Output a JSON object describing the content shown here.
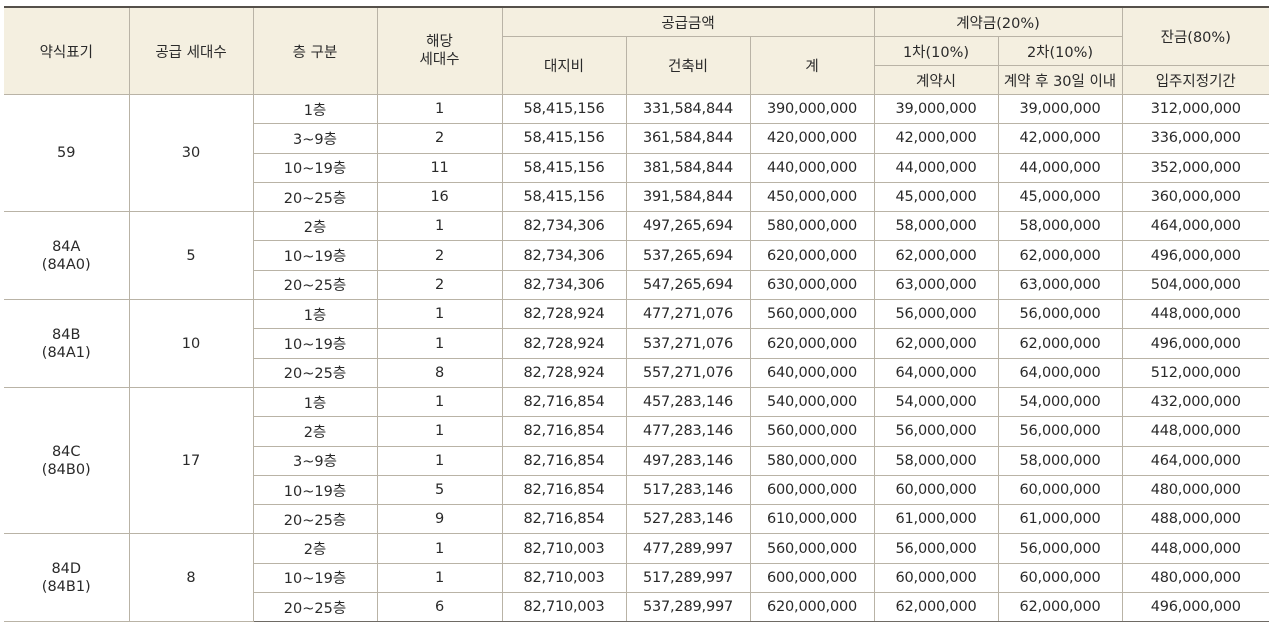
{
  "headers": {
    "type_label": "약식표기",
    "supply_units": "공급 세대수",
    "floor": "층 구분",
    "applicable_units_line1": "해당",
    "applicable_units_line2": "세대수",
    "supply_price": "공급금액",
    "land": "대지비",
    "building": "건축비",
    "total": "계",
    "deposit": "계약금(20%)",
    "first": "1차(10%)",
    "second": "2차(10%)",
    "first_when": "계약시",
    "second_when": "계약 후 30일 이내",
    "balance": "잔금(80%)",
    "balance_when": "입주지정기간"
  },
  "groups": [
    {
      "type": "59",
      "type_sub": "",
      "supply_units": "30",
      "rows": [
        {
          "floor": "1층",
          "units": "1",
          "land": "58,415,156",
          "building": "331,584,844",
          "total": "390,000,000",
          "first": "39,000,000",
          "second": "39,000,000",
          "balance": "312,000,000"
        },
        {
          "floor": "3~9층",
          "units": "2",
          "land": "58,415,156",
          "building": "361,584,844",
          "total": "420,000,000",
          "first": "42,000,000",
          "second": "42,000,000",
          "balance": "336,000,000"
        },
        {
          "floor": "10~19층",
          "units": "11",
          "land": "58,415,156",
          "building": "381,584,844",
          "total": "440,000,000",
          "first": "44,000,000",
          "second": "44,000,000",
          "balance": "352,000,000"
        },
        {
          "floor": "20~25층",
          "units": "16",
          "land": "58,415,156",
          "building": "391,584,844",
          "total": "450,000,000",
          "first": "45,000,000",
          "second": "45,000,000",
          "balance": "360,000,000"
        }
      ]
    },
    {
      "type": "84A",
      "type_sub": "(84A0)",
      "supply_units": "5",
      "rows": [
        {
          "floor": "2층",
          "units": "1",
          "land": "82,734,306",
          "building": "497,265,694",
          "total": "580,000,000",
          "first": "58,000,000",
          "second": "58,000,000",
          "balance": "464,000,000"
        },
        {
          "floor": "10~19층",
          "units": "2",
          "land": "82,734,306",
          "building": "537,265,694",
          "total": "620,000,000",
          "first": "62,000,000",
          "second": "62,000,000",
          "balance": "496,000,000"
        },
        {
          "floor": "20~25층",
          "units": "2",
          "land": "82,734,306",
          "building": "547,265,694",
          "total": "630,000,000",
          "first": "63,000,000",
          "second": "63,000,000",
          "balance": "504,000,000"
        }
      ]
    },
    {
      "type": "84B",
      "type_sub": "(84A1)",
      "supply_units": "10",
      "rows": [
        {
          "floor": "1층",
          "units": "1",
          "land": "82,728,924",
          "building": "477,271,076",
          "total": "560,000,000",
          "first": "56,000,000",
          "second": "56,000,000",
          "balance": "448,000,000"
        },
        {
          "floor": "10~19층",
          "units": "1",
          "land": "82,728,924",
          "building": "537,271,076",
          "total": "620,000,000",
          "first": "62,000,000",
          "second": "62,000,000",
          "balance": "496,000,000"
        },
        {
          "floor": "20~25층",
          "units": "8",
          "land": "82,728,924",
          "building": "557,271,076",
          "total": "640,000,000",
          "first": "64,000,000",
          "second": "64,000,000",
          "balance": "512,000,000"
        }
      ]
    },
    {
      "type": "84C",
      "type_sub": "(84B0)",
      "supply_units": "17",
      "rows": [
        {
          "floor": "1층",
          "units": "1",
          "land": "82,716,854",
          "building": "457,283,146",
          "total": "540,000,000",
          "first": "54,000,000",
          "second": "54,000,000",
          "balance": "432,000,000"
        },
        {
          "floor": "2층",
          "units": "1",
          "land": "82,716,854",
          "building": "477,283,146",
          "total": "560,000,000",
          "first": "56,000,000",
          "second": "56,000,000",
          "balance": "448,000,000"
        },
        {
          "floor": "3~9층",
          "units": "1",
          "land": "82,716,854",
          "building": "497,283,146",
          "total": "580,000,000",
          "first": "58,000,000",
          "second": "58,000,000",
          "balance": "464,000,000"
        },
        {
          "floor": "10~19층",
          "units": "5",
          "land": "82,716,854",
          "building": "517,283,146",
          "total": "600,000,000",
          "first": "60,000,000",
          "second": "60,000,000",
          "balance": "480,000,000"
        },
        {
          "floor": "20~25층",
          "units": "9",
          "land": "82,716,854",
          "building": "527,283,146",
          "total": "610,000,000",
          "first": "61,000,000",
          "second": "61,000,000",
          "balance": "488,000,000"
        }
      ]
    },
    {
      "type": "84D",
      "type_sub": "(84B1)",
      "supply_units": "8",
      "rows": [
        {
          "floor": "2층",
          "units": "1",
          "land": "82,710,003",
          "building": "477,289,997",
          "total": "560,000,000",
          "first": "56,000,000",
          "second": "56,000,000",
          "balance": "448,000,000"
        },
        {
          "floor": "10~19층",
          "units": "1",
          "land": "82,710,003",
          "building": "517,289,997",
          "total": "600,000,000",
          "first": "60,000,000",
          "second": "60,000,000",
          "balance": "480,000,000"
        },
        {
          "floor": "20~25층",
          "units": "6",
          "land": "82,710,003",
          "building": "537,289,997",
          "total": "620,000,000",
          "first": "62,000,000",
          "second": "62,000,000",
          "balance": "496,000,000"
        }
      ]
    }
  ]
}
